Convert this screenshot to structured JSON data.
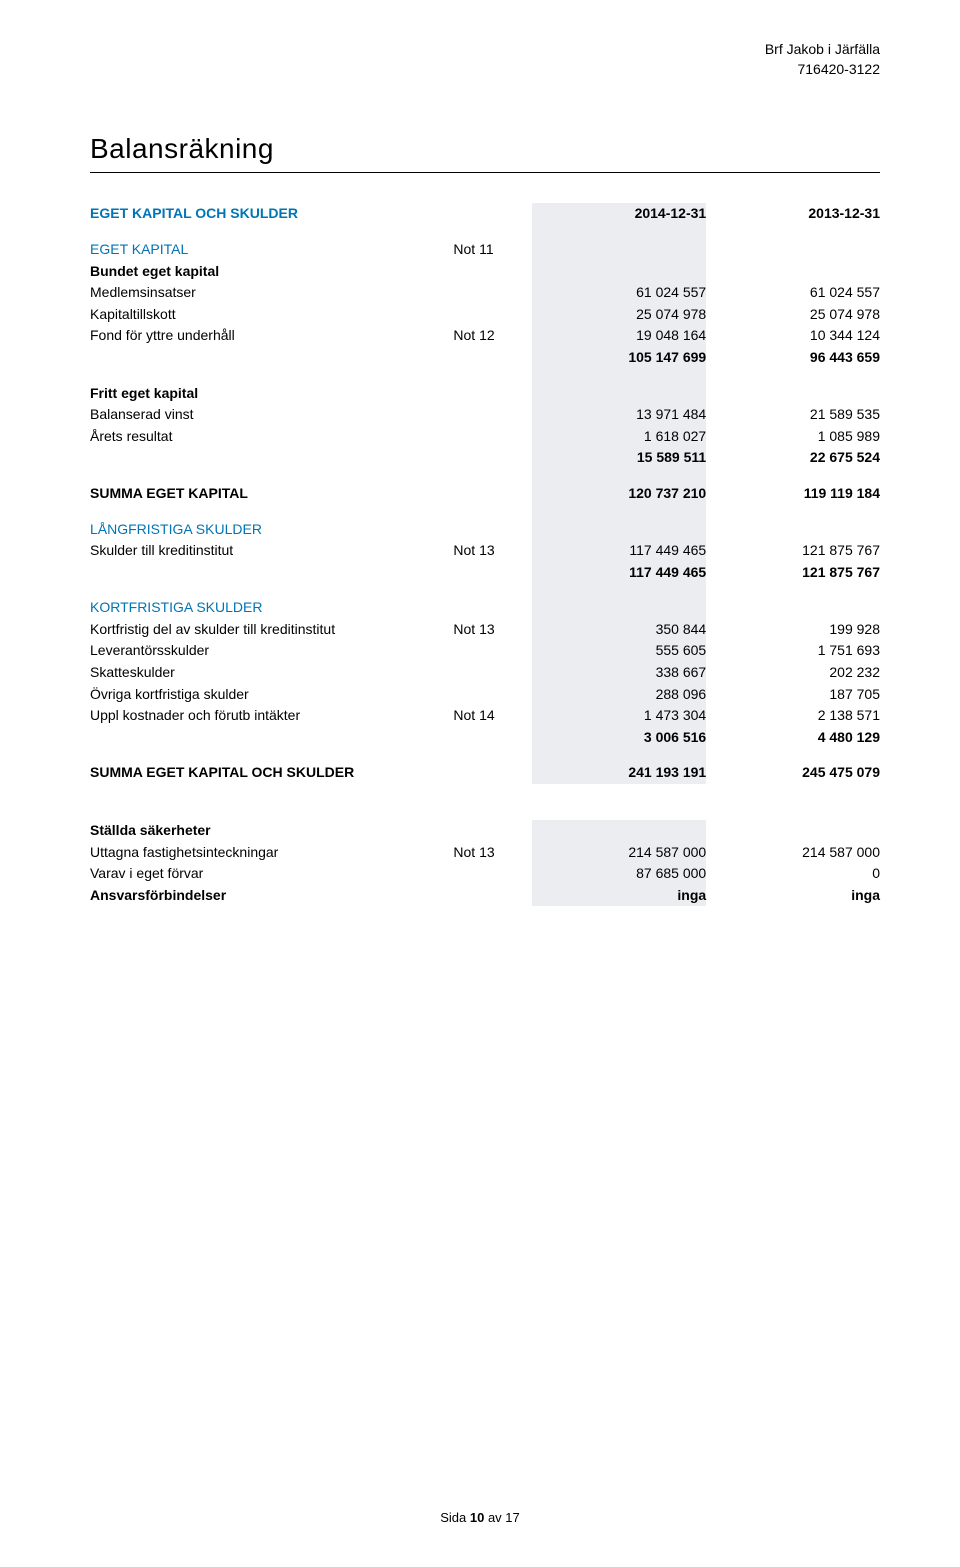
{
  "header": {
    "company": "Brf Jakob i Järfälla",
    "orgno": "716420-3122"
  },
  "title": "Balansräkning",
  "columns": {
    "year1": "2014-12-31",
    "year2": "2013-12-31"
  },
  "colors": {
    "accent": "#0074b5",
    "shade": "#ebedf0",
    "text": "#000000",
    "background": "#ffffff"
  },
  "sections": {
    "eget_kapital_och_skulder": "EGET KAPITAL OCH SKULDER",
    "eget_kapital_title": "EGET KAPITAL",
    "eget_kapital_note": "Not 11",
    "bundet_eget_kapital": "Bundet eget kapital",
    "fritt_eget_kapital": "Fritt eget kapital",
    "summa_eget_kapital": "SUMMA EGET KAPITAL",
    "langfristiga_skulder": "LÅNGFRISTIGA SKULDER",
    "kortfristiga_skulder": "KORTFRISTIGA SKULDER",
    "summa_eget_kapital_och_skulder": "SUMMA EGET KAPITAL OCH SKULDER",
    "stallda_sakerheter": "Ställda säkerheter"
  },
  "rows": {
    "medlemsinsatser": {
      "label": "Medlemsinsatser",
      "note": "",
      "y1": "61 024 557",
      "y2": "61 024 557"
    },
    "kapitaltillskott": {
      "label": "Kapitaltillskott",
      "note": "",
      "y1": "25 074 978",
      "y2": "25 074 978"
    },
    "fond_yttre": {
      "label": "Fond för yttre underhåll",
      "note": "Not 12",
      "y1": "19 048 164",
      "y2": "10 344 124"
    },
    "bundet_sum": {
      "y1": "105 147 699",
      "y2": "96 443 659"
    },
    "balanserad_vinst": {
      "label": "Balanserad vinst",
      "note": "",
      "y1": "13 971 484",
      "y2": "21 589 535"
    },
    "arets_resultat": {
      "label": "Årets resultat",
      "note": "",
      "y1": "1 618 027",
      "y2": "1 085 989"
    },
    "fritt_sum": {
      "y1": "15 589 511",
      "y2": "22 675 524"
    },
    "summa_eget_kapital": {
      "y1": "120 737 210",
      "y2": "119 119 184"
    },
    "skulder_kreditinstitut": {
      "label": "Skulder till kreditinstitut",
      "note": "Not 13",
      "y1": "117 449 465",
      "y2": "121 875 767"
    },
    "langfristiga_sum": {
      "y1": "117 449 465",
      "y2": "121 875 767"
    },
    "kortfristig_del": {
      "label": "Kortfristig del av skulder till kreditinstitut",
      "note": "Not 13",
      "y1": "350 844",
      "y2": "199 928"
    },
    "leverantorsskulder": {
      "label": "Leverantörsskulder",
      "note": "",
      "y1": "555 605",
      "y2": "1 751 693"
    },
    "skatteskulder": {
      "label": "Skatteskulder",
      "note": "",
      "y1": "338 667",
      "y2": "202 232"
    },
    "ovriga_kortfristiga": {
      "label": "Övriga kortfristiga skulder",
      "note": "",
      "y1": "288 096",
      "y2": "187 705"
    },
    "uppl_kostnader": {
      "label": "Uppl kostnader och förutb intäkter",
      "note": "Not 14",
      "y1": "1 473 304",
      "y2": "2 138 571"
    },
    "kortfristiga_sum": {
      "y1": "3 006 516",
      "y2": "4 480 129"
    },
    "summa_total": {
      "y1": "241 193 191",
      "y2": "245 475 079"
    },
    "uttagna_fastighet": {
      "label": "Uttagna fastighetsinteckningar",
      "note": "Not 13",
      "y1": "214 587 000",
      "y2": "214 587 000"
    },
    "varav_eget_forvar": {
      "label": "Varav i eget förvar",
      "note": "",
      "y1": "87 685 000",
      "y2": "0"
    },
    "ansvarsforbindelser": {
      "label": "Ansvarsförbindelser",
      "note": "",
      "y1": "inga",
      "y2": "inga"
    }
  },
  "footer": {
    "prefix": "Sida ",
    "page": "10",
    "middle": " av ",
    "total": "17"
  }
}
